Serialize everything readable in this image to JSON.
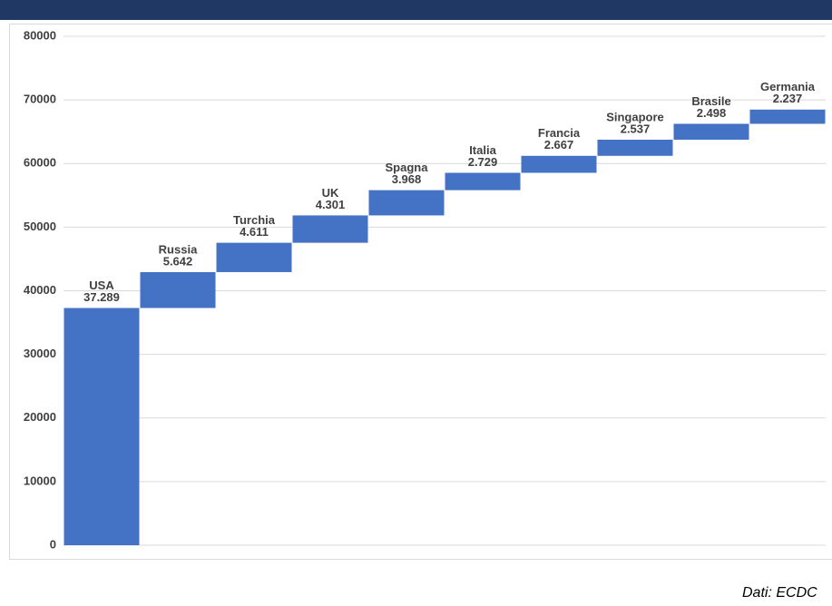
{
  "chart_data": {
    "type": "waterfall",
    "categories": [
      "USA",
      "Russia",
      "Turchia",
      "UK",
      "Spagna",
      "Italia",
      "Francia",
      "Singapore",
      "Brasile",
      "Germania"
    ],
    "values": [
      37289,
      5642,
      4611,
      4301,
      3968,
      2729,
      2667,
      2537,
      2498,
      2237
    ],
    "value_labels": [
      "37.289",
      "5.642",
      "4.611",
      "4.301",
      "3.968",
      "2.729",
      "2.667",
      "2.537",
      "2.498",
      "2.237"
    ],
    "color": "#4472c4",
    "ylim": [
      0,
      80000
    ],
    "yticks": [
      0,
      10000,
      20000,
      30000,
      40000,
      50000,
      60000,
      70000,
      80000
    ],
    "grid": true,
    "source": "Dati: ECDC"
  }
}
